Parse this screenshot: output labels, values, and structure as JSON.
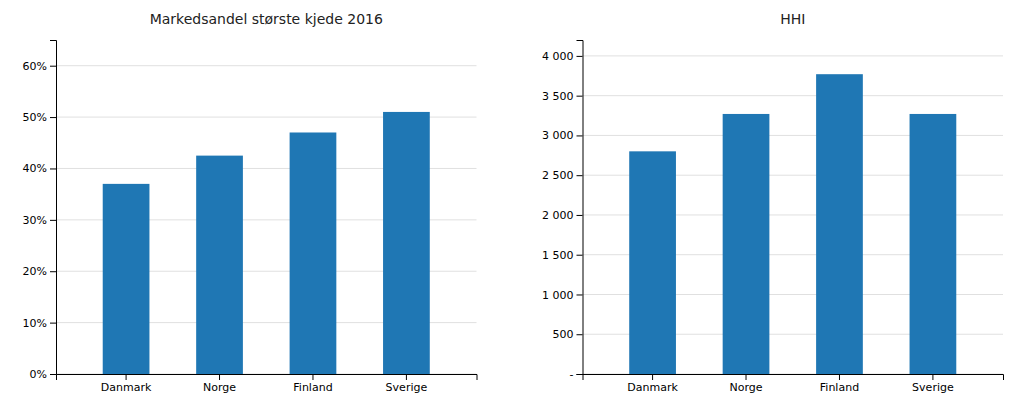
{
  "chart_data": [
    {
      "type": "bar",
      "title": "Markedsandel største kjede 2016",
      "categories": [
        "Danmark",
        "Norge",
        "Finland",
        "Sverige"
      ],
      "values": [
        0.37,
        0.425,
        0.47,
        0.51
      ],
      "ylim": [
        0,
        0.65
      ],
      "yticks": [
        {
          "value": 0.0,
          "label": "0%"
        },
        {
          "value": 0.1,
          "label": "10%"
        },
        {
          "value": 0.2,
          "label": "20%"
        },
        {
          "value": 0.3,
          "label": "30%"
        },
        {
          "value": 0.4,
          "label": "40%"
        },
        {
          "value": 0.5,
          "label": "50%"
        },
        {
          "value": 0.6,
          "label": "60%"
        }
      ],
      "grid": true
    },
    {
      "type": "bar",
      "title": "HHI",
      "categories": [
        "Danmark",
        "Norge",
        "Finland",
        "Sverige"
      ],
      "values": [
        2800,
        3270,
        3770,
        3270
      ],
      "ylim": [
        0,
        4200
      ],
      "yticks": [
        {
          "value": 0,
          "label": "-"
        },
        500,
        {
          "value": 1000,
          "label": "1 000"
        },
        {
          "value": 1500,
          "label": "1 500"
        },
        {
          "value": 2000,
          "label": "2 000"
        },
        {
          "value": 2500,
          "label": "2 500"
        },
        {
          "value": 3000,
          "label": "3 000"
        },
        {
          "value": 3500,
          "label": "3 500"
        },
        {
          "value": 4000,
          "label": "4 000"
        }
      ],
      "grid": true
    }
  ]
}
